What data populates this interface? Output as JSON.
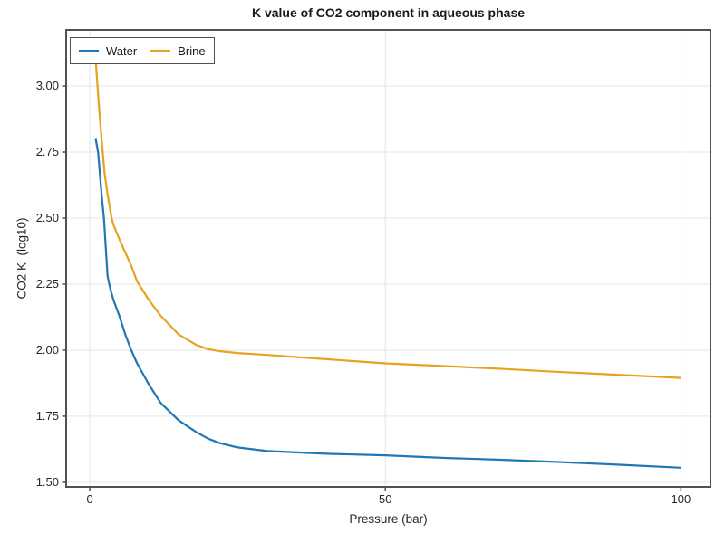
{
  "chart_data": {
    "type": "line",
    "title": "K value of CO2 component in aqueous phase",
    "xlabel": "Pressure (bar)",
    "ylabel": "CO2 K  (log10)",
    "xlim": [
      -4,
      105
    ],
    "ylim": [
      1.4825,
      3.2125
    ],
    "xticks": [
      0,
      50,
      100
    ],
    "xtick_labels": [
      "0",
      "50",
      "100"
    ],
    "yticks": [
      1.5,
      1.75,
      2.0,
      2.25,
      2.5,
      2.75,
      3.0
    ],
    "ytick_labels": [
      "1.50",
      "1.75",
      "2.00",
      "2.25",
      "2.50",
      "2.75",
      "3.00"
    ],
    "grid": true,
    "legend_position": "top-left-inside",
    "colors": {
      "spine": "#515151",
      "gridline": "#e5e5e5",
      "tick_text": "#262626"
    },
    "series": [
      {
        "name": "Water",
        "color": "#1f77b4",
        "points": [
          [
            1,
            2.8
          ],
          [
            1.4,
            2.75
          ],
          [
            1.7,
            2.67
          ],
          [
            2,
            2.59
          ],
          [
            2.4,
            2.5
          ],
          [
            2.7,
            2.39
          ],
          [
            3,
            2.28
          ],
          [
            3.5,
            2.23
          ],
          [
            4,
            2.19
          ],
          [
            5,
            2.13
          ],
          [
            6,
            2.06
          ],
          [
            7,
            2.0
          ],
          [
            8,
            1.95
          ],
          [
            10,
            1.87
          ],
          [
            12,
            1.8
          ],
          [
            15,
            1.735
          ],
          [
            18,
            1.69
          ],
          [
            20,
            1.665
          ],
          [
            22,
            1.648
          ],
          [
            25,
            1.632
          ],
          [
            30,
            1.618
          ],
          [
            40,
            1.608
          ],
          [
            50,
            1.602
          ],
          [
            60,
            1.592
          ],
          [
            70,
            1.585
          ],
          [
            80,
            1.576
          ],
          [
            90,
            1.566
          ],
          [
            100,
            1.555
          ]
        ]
      },
      {
        "name": "Brine",
        "color": "#e5a321",
        "points": [
          [
            1,
            3.1
          ],
          [
            1.3,
            3.0
          ],
          [
            1.6,
            2.91
          ],
          [
            2,
            2.8
          ],
          [
            2.5,
            2.67
          ],
          [
            3,
            2.59
          ],
          [
            3.7,
            2.5
          ],
          [
            4,
            2.475
          ],
          [
            5,
            2.42
          ],
          [
            6,
            2.37
          ],
          [
            7,
            2.32
          ],
          [
            8,
            2.26
          ],
          [
            10,
            2.19
          ],
          [
            12,
            2.13
          ],
          [
            15,
            2.06
          ],
          [
            18,
            2.02
          ],
          [
            20,
            2.004
          ],
          [
            22,
            1.996
          ],
          [
            25,
            1.989
          ],
          [
            30,
            1.982
          ],
          [
            40,
            1.966
          ],
          [
            50,
            1.95
          ],
          [
            60,
            1.94
          ],
          [
            70,
            1.929
          ],
          [
            80,
            1.917
          ],
          [
            90,
            1.906
          ],
          [
            100,
            1.895
          ]
        ]
      }
    ]
  }
}
